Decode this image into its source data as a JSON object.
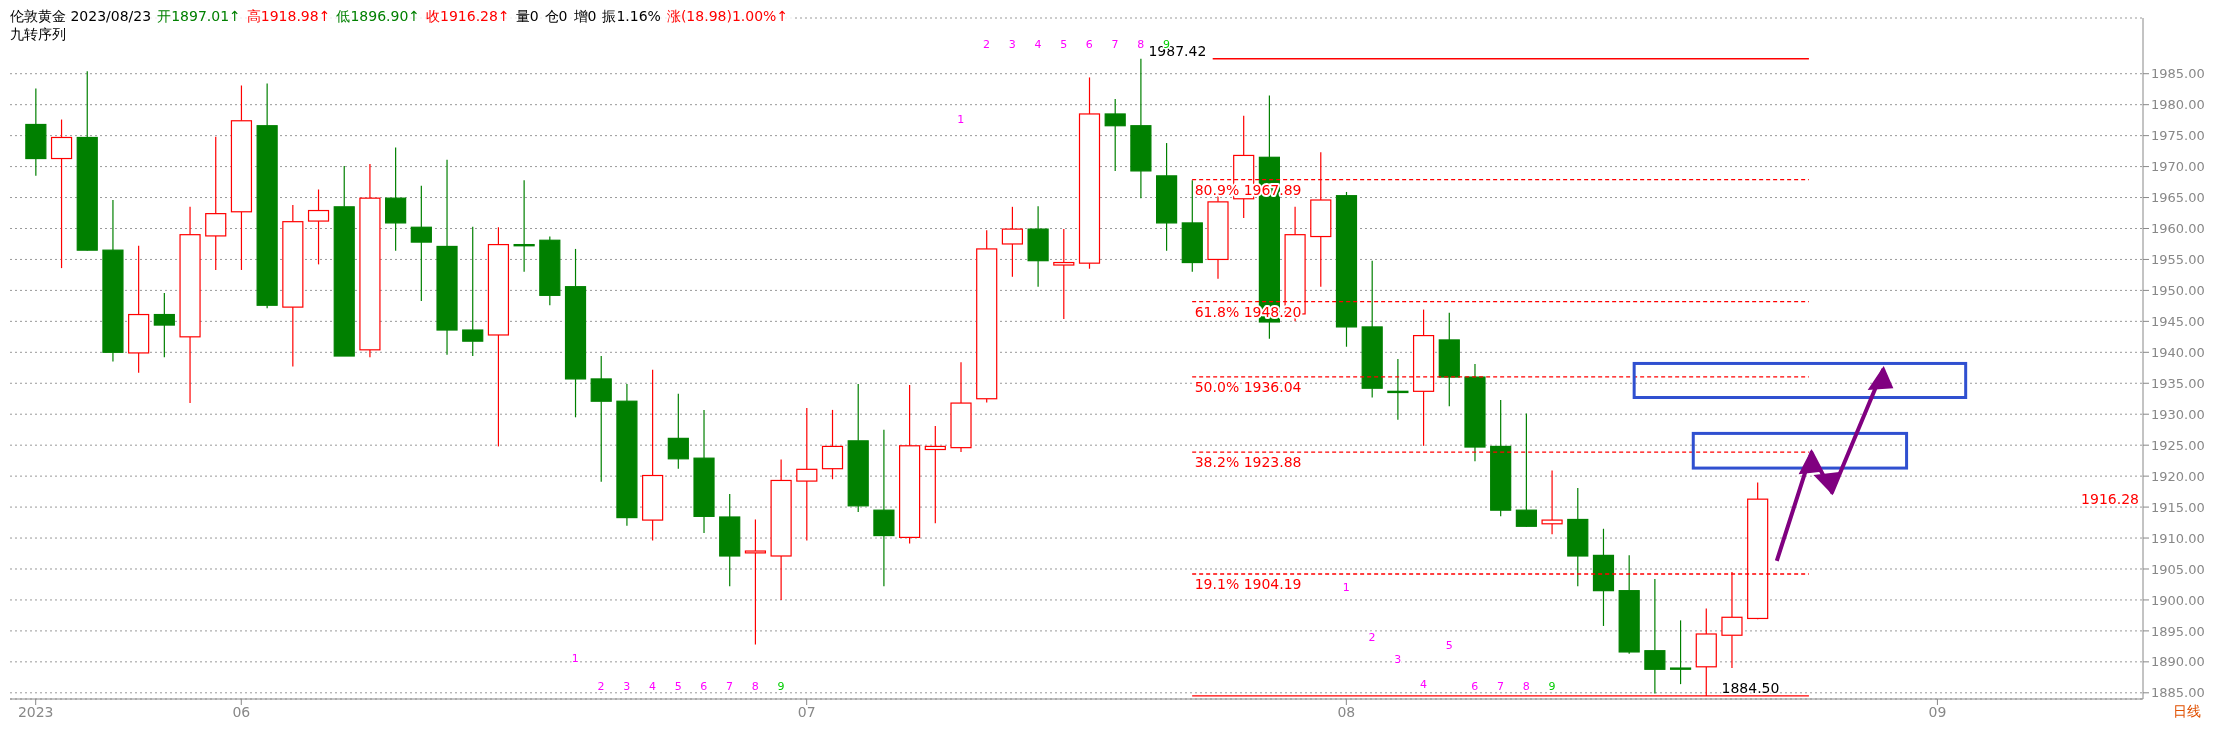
{
  "chart_data": {
    "type": "candlestick",
    "title": "伦敦黄金 2023/08/23",
    "categories": [
      "2023",
      null,
      null,
      null,
      null,
      null,
      null,
      null,
      "06",
      null,
      null,
      null,
      null,
      null,
      null,
      null,
      null,
      null,
      null,
      null,
      null,
      null,
      null,
      null,
      null,
      null,
      null,
      null,
      null,
      null,
      "07",
      null,
      null,
      null,
      null,
      null,
      null,
      null,
      null,
      null,
      null,
      null,
      null,
      null,
      null,
      null,
      null,
      null,
      null,
      null,
      null,
      "08",
      null,
      null,
      null,
      null,
      null,
      null,
      null,
      null,
      null,
      null,
      null,
      null,
      null,
      null,
      null,
      null,
      null,
      null,
      null,
      null,
      null,
      null,
      "09",
      null,
      null,
      null,
      null,
      null,
      null,
      null
    ],
    "ohlc": [
      [
        1976.8,
        1982.6,
        1968.5,
        1971.3
      ],
      [
        1971.3,
        1977.6,
        1953.6,
        1974.7
      ],
      [
        1974.7,
        1985.4,
        1956.4,
        1956.5
      ],
      [
        1956.5,
        1964.6,
        1938.5,
        1940.0
      ],
      [
        1939.9,
        1957.2,
        1936.7,
        1946.1
      ],
      [
        1946.1,
        1949.6,
        1939.2,
        1944.4
      ],
      [
        1942.5,
        1963.5,
        1931.8,
        1959.0
      ],
      [
        1958.8,
        1974.8,
        1953.3,
        1962.4
      ],
      [
        1962.7,
        1983.1,
        1953.3,
        1977.4
      ],
      [
        1976.6,
        1983.4,
        1947.1,
        1947.6
      ],
      [
        1947.3,
        1963.8,
        1937.7,
        1961.1
      ],
      [
        1961.2,
        1966.3,
        1954.2,
        1962.9
      ],
      [
        1963.5,
        1970.1,
        1939.4,
        1939.4
      ],
      [
        1940.4,
        1970.4,
        1939.2,
        1964.9
      ],
      [
        1964.9,
        1973.1,
        1956.4,
        1960.9
      ],
      [
        1960.2,
        1966.9,
        1948.3,
        1957.8
      ],
      [
        1957.1,
        1971.1,
        1939.6,
        1943.6
      ],
      [
        1943.6,
        1960.3,
        1939.4,
        1941.8
      ],
      [
        1942.8,
        1960.2,
        1924.8,
        1957.4
      ],
      [
        1957.4,
        1967.8,
        1953.0,
        1957.4
      ],
      [
        1958.1,
        1958.7,
        1947.6,
        1949.2
      ],
      [
        1950.6,
        1956.7,
        1929.5,
        1935.7
      ],
      [
        1935.7,
        1939.4,
        1919.1,
        1932.1
      ],
      [
        1932.1,
        1934.9,
        1912.0,
        1913.3
      ],
      [
        1912.9,
        1937.2,
        1909.6,
        1920.1
      ],
      [
        1926.1,
        1933.3,
        1921.2,
        1922.8
      ],
      [
        1922.9,
        1930.7,
        1910.8,
        1913.5
      ],
      [
        1913.4,
        1917.1,
        1902.2,
        1907.1
      ],
      [
        1907.6,
        1913.0,
        1892.8,
        1907.9
      ],
      [
        1907.1,
        1922.7,
        1900.0,
        1919.3
      ],
      [
        1919.2,
        1931.0,
        1909.6,
        1921.1
      ],
      [
        1921.2,
        1930.7,
        1919.5,
        1924.8
      ],
      [
        1925.7,
        1934.9,
        1914.2,
        1915.2
      ],
      [
        1914.5,
        1927.5,
        1902.2,
        1910.4
      ],
      [
        1910.1,
        1934.7,
        1909.1,
        1924.9
      ],
      [
        1924.3,
        1928.1,
        1912.4,
        1924.8
      ],
      [
        1924.6,
        1938.4,
        1923.9,
        1931.8
      ],
      [
        1932.5,
        1959.7,
        1931.9,
        1956.7
      ],
      [
        1957.5,
        1963.5,
        1952.2,
        1959.9
      ],
      [
        1959.9,
        1963.6,
        1950.6,
        1954.8
      ],
      [
        1954.1,
        1959.9,
        1945.4,
        1954.5
      ],
      [
        1954.4,
        1984.4,
        1953.5,
        1978.5
      ],
      [
        1978.5,
        1980.9,
        1969.3,
        1976.6
      ],
      [
        1976.6,
        1987.42,
        1964.9,
        1969.3
      ],
      [
        1968.5,
        1973.8,
        1956.4,
        1960.9
      ],
      [
        1960.9,
        1967.8,
        1953.0,
        1954.5
      ],
      [
        1955.0,
        1965.6,
        1951.9,
        1964.3
      ],
      [
        1964.8,
        1978.2,
        1961.7,
        1971.8
      ],
      [
        1971.5,
        1981.5,
        1942.2,
        1944.9
      ],
      [
        1946.2,
        1963.5,
        1945.0,
        1959.0
      ],
      [
        1958.7,
        1972.3,
        1950.6,
        1964.6
      ],
      [
        1965.3,
        1965.9,
        1940.9,
        1944.1
      ],
      [
        1944.1,
        1954.8,
        1932.7,
        1934.2
      ],
      [
        1933.7,
        1938.9,
        1929.1,
        1933.7
      ],
      [
        1933.7,
        1946.9,
        1924.9,
        1942.7
      ],
      [
        1942.0,
        1946.4,
        1931.3,
        1936.0
      ],
      [
        1936.0,
        1938.1,
        1922.4,
        1924.7
      ],
      [
        1924.8,
        1932.3,
        1913.5,
        1914.5
      ],
      [
        1914.5,
        1930.1,
        1911.8,
        1911.9
      ],
      [
        1912.3,
        1920.9,
        1910.6,
        1912.9
      ],
      [
        1913.0,
        1918.1,
        1902.2,
        1907.1
      ],
      [
        1907.2,
        1911.5,
        1895.8,
        1901.5
      ],
      [
        1901.5,
        1907.2,
        1891.3,
        1891.6
      ],
      [
        1891.8,
        1903.4,
        1884.9,
        1888.8
      ],
      [
        1889.0,
        1896.7,
        1886.4,
        1889.0
      ],
      [
        1889.2,
        1898.6,
        1884.5,
        1894.5
      ],
      [
        1894.3,
        1904.5,
        1889.0,
        1897.2
      ],
      [
        1897.01,
        1918.98,
        1896.9,
        1916.28
      ],
      null,
      null,
      null,
      null,
      null,
      null,
      null,
      null,
      null,
      null,
      null,
      null,
      null,
      null
    ],
    "colors": [
      "#008000",
      "#ff0000",
      "#008000",
      "#008000",
      "#ff0000",
      "#008000",
      "#ff0000",
      "#ff0000",
      "#ff0000",
      "#008000",
      "#ff0000",
      "#ff0000",
      "#008000",
      "#ff0000",
      "#008000",
      "#008000",
      "#008000",
      "#008000",
      "#ff0000",
      "#008000",
      "#008000",
      "#008000",
      "#008000",
      "#008000",
      "#ff0000",
      "#008000",
      "#008000",
      "#008000",
      "#ff0000",
      "#ff0000",
      "#ff0000",
      "#ff0000",
      "#008000",
      "#008000",
      "#ff0000",
      "#ff0000",
      "#ff0000",
      "#ff0000",
      "#ff0000",
      "#008000",
      "#ff0000",
      "#ff0000",
      "#008000",
      "#008000",
      "#008000",
      "#008000",
      "#ff0000",
      "#ff0000",
      "#008000",
      "#ff0000",
      "#ff0000",
      "#008000",
      "#008000",
      "#008000",
      "#ff0000",
      "#008000",
      "#008000",
      "#008000",
      "#008000",
      "#ff0000",
      "#008000",
      "#008000",
      "#008000",
      "#008000",
      "#008000",
      "#ff0000",
      "#ff0000",
      "#ff0000",
      null,
      null,
      null,
      null,
      null,
      null,
      null,
      null,
      null,
      null,
      null,
      null,
      null,
      null
    ],
    "ylim": [
      1884,
      1994
    ],
    "yticks": [
      {
        "value": 1885,
        "label": "1885.00"
      },
      {
        "value": 1890,
        "label": "1890.00"
      },
      {
        "value": 1895,
        "label": "1895.00"
      },
      {
        "value": 1900,
        "label": "1900.00"
      },
      {
        "value": 1905,
        "label": "1905.00"
      },
      {
        "value": 1910,
        "label": "1910.00"
      },
      {
        "value": 1915,
        "label": "1915.00"
      },
      {
        "value": 1920,
        "label": "1920.00"
      },
      {
        "value": 1925,
        "label": "1925.00"
      },
      {
        "value": 1930,
        "label": "1930.00"
      },
      {
        "value": 1935,
        "label": "1935.00"
      },
      {
        "value": 1940,
        "label": "1940.00"
      },
      {
        "value": 1945,
        "label": "1945.00"
      },
      {
        "value": 1950,
        "label": "1950.00"
      },
      {
        "value": 1955,
        "label": "1955.00"
      },
      {
        "value": 1960,
        "label": "1960.00"
      },
      {
        "value": 1965,
        "label": "1965.00"
      },
      {
        "value": 1970,
        "label": "1970.00"
      },
      {
        "value": 1975,
        "label": "1975.00"
      },
      {
        "value": 1980,
        "label": "1980.00"
      },
      {
        "value": 1985,
        "label": "1985.00"
      }
    ],
    "grid": "y",
    "ref_lines": [
      {
        "axis": "y",
        "value": 1987.42,
        "label": "1987.42",
        "color": "#ff0000",
        "line_style": "solid"
      },
      {
        "axis": "y",
        "value": 1884.5,
        "label": "1884.50",
        "color": "#ff0000",
        "line_style": "solid"
      },
      {
        "axis": "y",
        "value": 1967.89,
        "label": "80.9% 1967.89",
        "color": "#ff0000",
        "line_style": "dashed"
      },
      {
        "axis": "y",
        "value": 1948.2,
        "label": "61.8% 1948.20",
        "color": "#ff0000",
        "line_style": "dashed"
      },
      {
        "axis": "y",
        "value": 1936.04,
        "label": "50.0% 1936.04",
        "color": "#ff0000",
        "line_style": "dashed"
      },
      {
        "axis": "y",
        "value": 1923.88,
        "label": "38.2% 1923.88",
        "color": "#ff0000",
        "line_style": "dashed"
      },
      {
        "axis": "y",
        "value": 1904.19,
        "label": "19.1% 1904.19",
        "color": "#ff0000",
        "line_style": "dashed"
      }
    ],
    "annotations": [
      "开1897.01↑",
      "高1918.98↑",
      "低1896.90↑",
      "收1916.28↑",
      "量0",
      "仓0",
      "增0",
      "振1.16%",
      "涨(18.98)1.00%↑",
      "九转序列",
      "日线",
      "1916.28",
      "1",
      "2",
      "3",
      "4",
      "5",
      "6",
      "7",
      "8",
      "9",
      "1",
      "2",
      "3",
      "4",
      "5",
      "6",
      "7",
      "8",
      "9",
      "1",
      "2",
      "3",
      "4",
      "5",
      "6",
      "7",
      "8",
      "9"
    ]
  }
}
